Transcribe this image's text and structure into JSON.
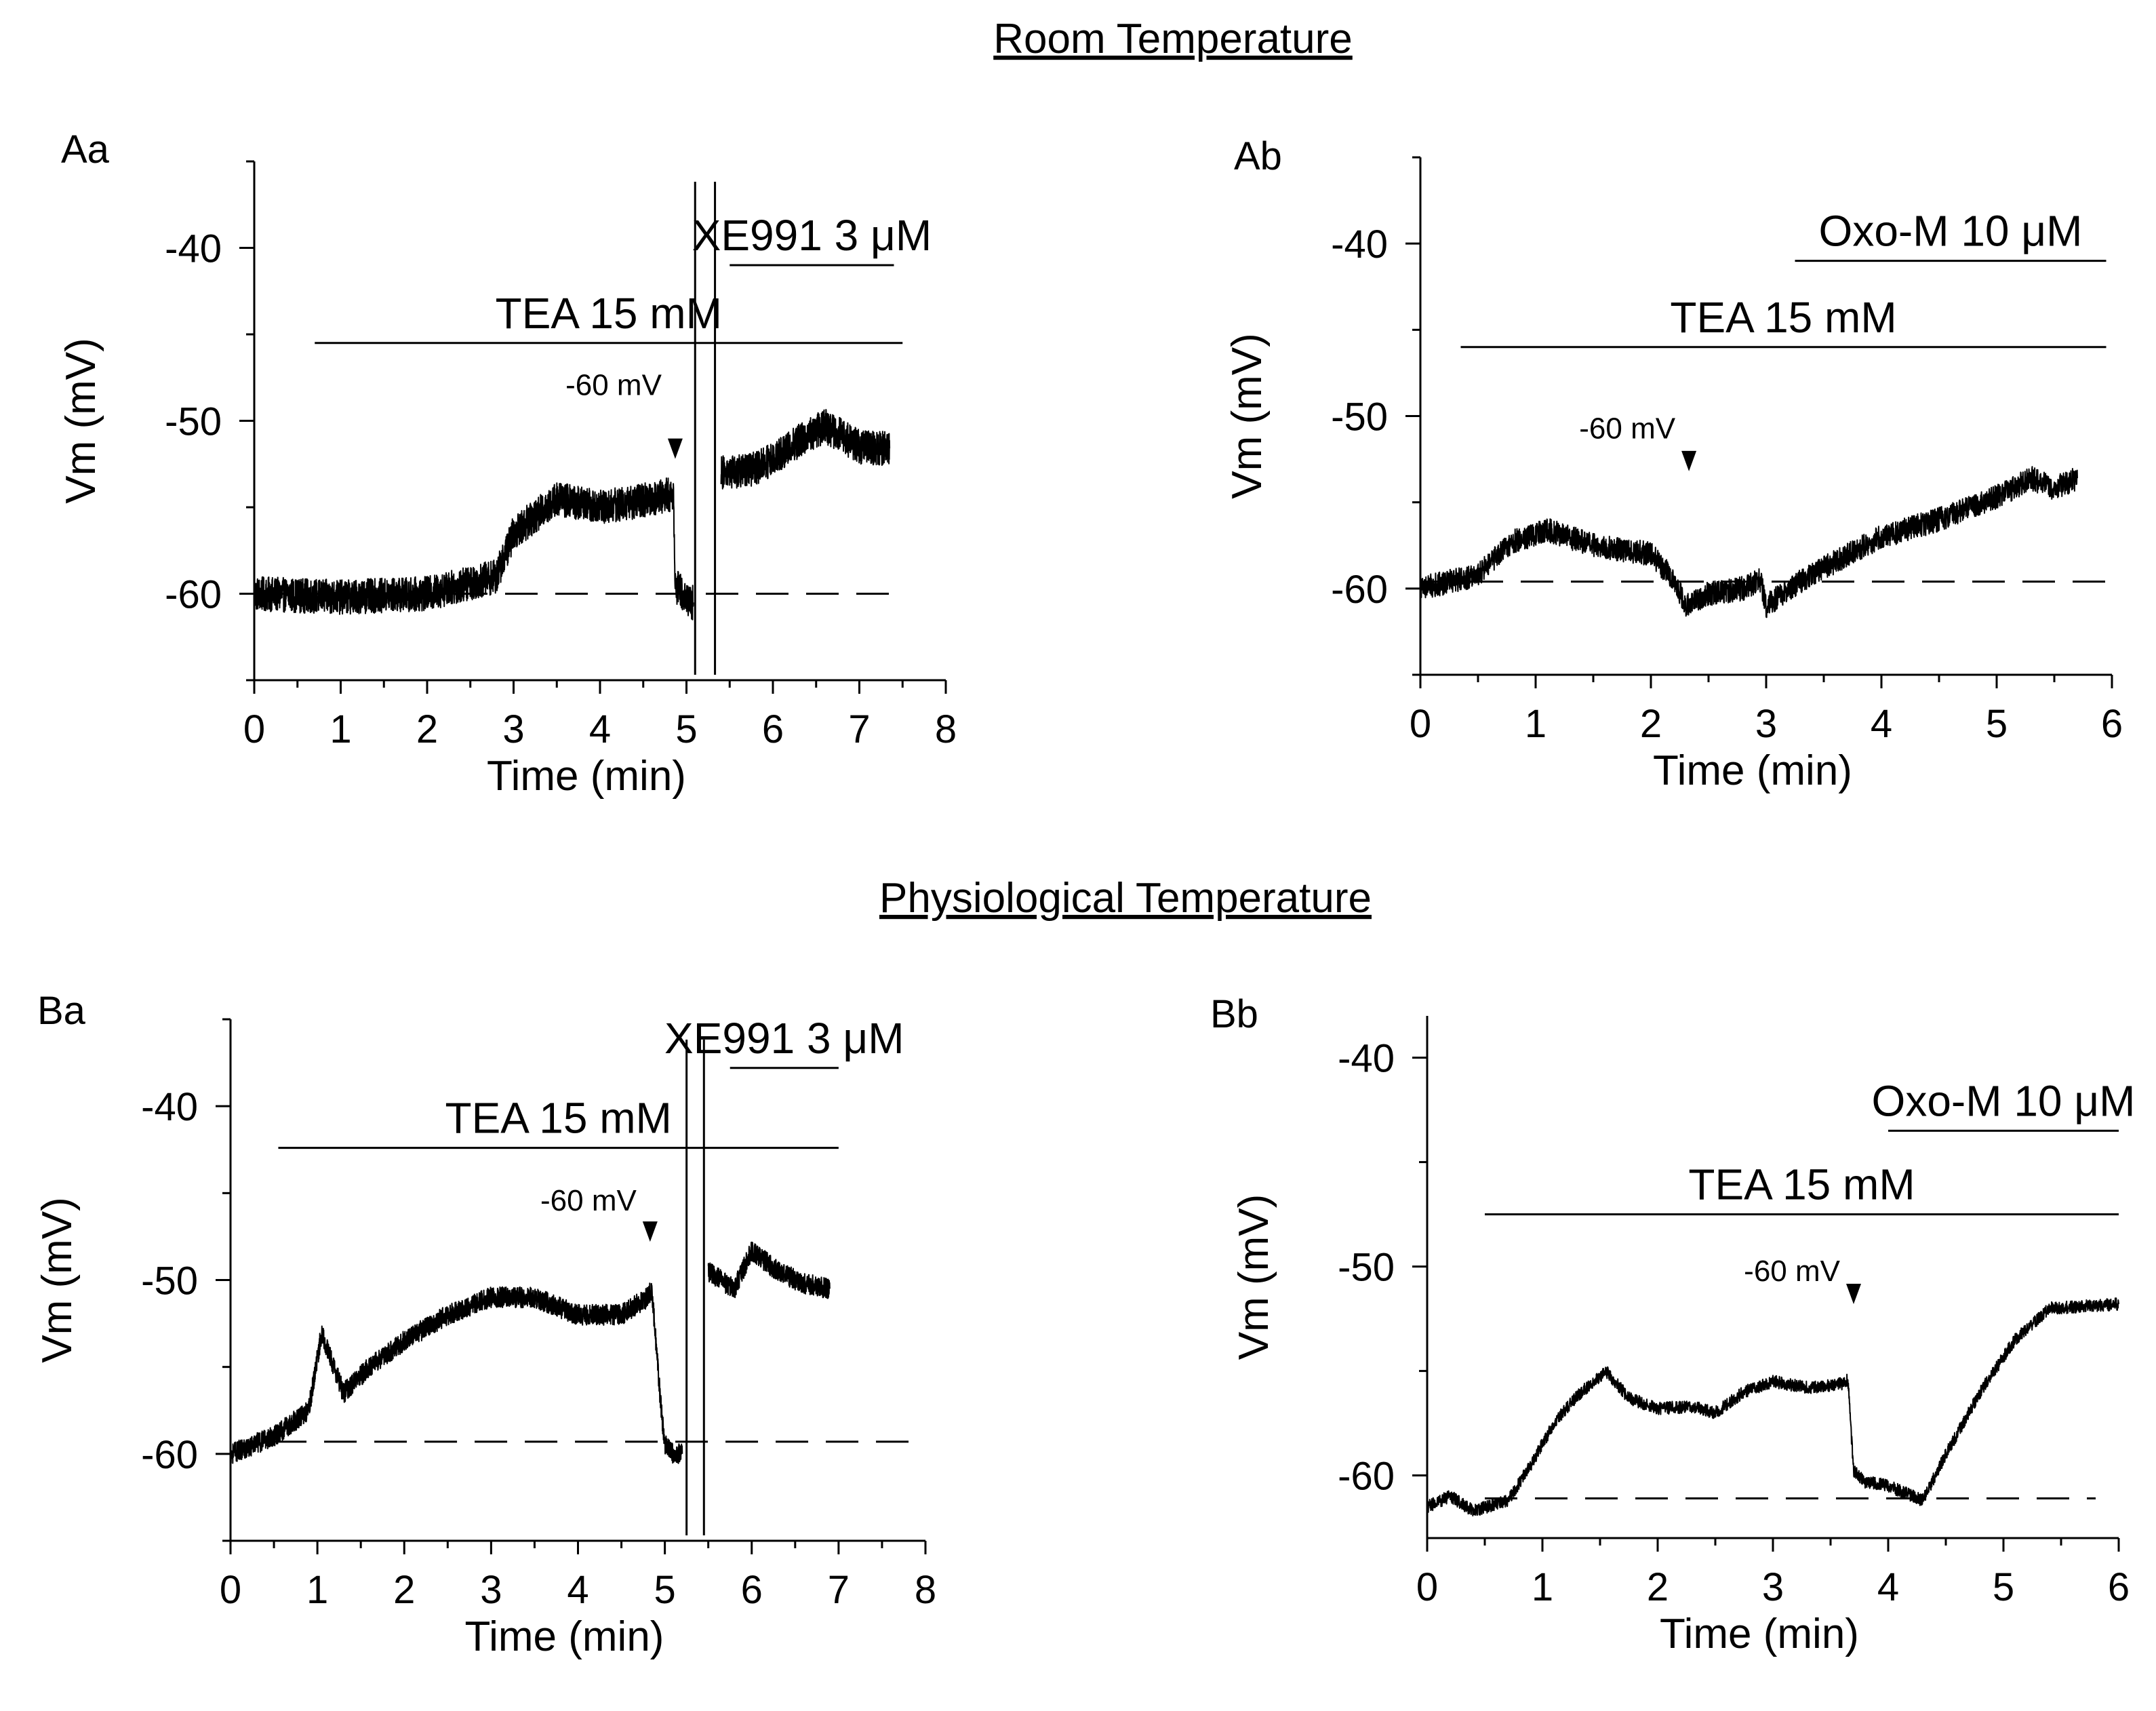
{
  "sections": {
    "room": "Room Temperature",
    "physio": "Physiological Temperature"
  },
  "chart_data": [
    {
      "id": "Aa",
      "type": "line",
      "panel_label": "Aa",
      "xlabel": "Time (min)",
      "ylabel": "Vm (mV)",
      "xlim": [
        0,
        8
      ],
      "ylim": [
        -65,
        -35
      ],
      "x_ticks": [
        0,
        1,
        2,
        3,
        4,
        5,
        6,
        7,
        8
      ],
      "y_ticks": [
        -60,
        -50,
        -40
      ],
      "trace_color": "#000000",
      "trace_noise_mV": 1.0,
      "trace": [
        [
          0,
          -60.0
        ],
        [
          1.0,
          -60.2
        ],
        [
          2.0,
          -60.0
        ],
        [
          2.8,
          -59.0
        ],
        [
          3.0,
          -56.5
        ],
        [
          3.5,
          -54.5
        ],
        [
          4.0,
          -55.0
        ],
        [
          4.5,
          -54.6
        ],
        [
          4.85,
          -54.2
        ],
        [
          4.87,
          -59.5
        ],
        [
          5.05,
          -60.5
        ],
        [
          5.08,
          -60.5
        ]
      ],
      "trace_after": [
        [
          5.4,
          -53.0
        ],
        [
          5.8,
          -52.8
        ],
        [
          6.2,
          -51.5
        ],
        [
          6.6,
          -50.3
        ],
        [
          7.0,
          -51.5
        ],
        [
          7.35,
          -51.6
        ]
      ],
      "breaks": [
        5.1,
        5.33
      ],
      "baseline": {
        "value": -60,
        "x_start": 0,
        "x_end": 7.35,
        "dashed": true
      },
      "bars": [
        {
          "label": "TEA 15 mM",
          "start": 0.7,
          "end": 7.5,
          "value": -45.5
        },
        {
          "label": "XE991 3 μM",
          "start": 5.5,
          "end": 7.4,
          "value": -41.0
        }
      ],
      "annotations": [
        {
          "text": "-60 mV",
          "x": 4.87,
          "marker_value": -52.2,
          "label_value": -48.5
        }
      ]
    },
    {
      "id": "Ab",
      "type": "line",
      "panel_label": "Ab",
      "xlabel": "Time (min)",
      "ylabel": "Vm (mV)",
      "xlim": [
        0,
        6
      ],
      "ylim": [
        -65,
        -35
      ],
      "x_ticks": [
        0,
        1,
        2,
        3,
        4,
        5,
        6
      ],
      "y_ticks": [
        -60,
        -50,
        -40
      ],
      "trace_color": "#000000",
      "trace_noise_mV": 0.7,
      "trace": [
        [
          0,
          -60.0
        ],
        [
          0.5,
          -59.2
        ],
        [
          0.8,
          -57.3
        ],
        [
          1.1,
          -56.6
        ],
        [
          1.5,
          -57.5
        ],
        [
          2.0,
          -58.0
        ],
        [
          2.2,
          -59.5
        ],
        [
          2.3,
          -61.0
        ],
        [
          2.5,
          -60.3
        ],
        [
          2.8,
          -60.0
        ],
        [
          2.95,
          -59.5
        ],
        [
          3.0,
          -61.0
        ],
        [
          3.2,
          -60.0
        ],
        [
          3.5,
          -58.8
        ],
        [
          4.0,
          -57.0
        ],
        [
          4.5,
          -56.0
        ],
        [
          5.0,
          -54.7
        ],
        [
          5.3,
          -53.6
        ],
        [
          5.5,
          -54.2
        ],
        [
          5.7,
          -53.6
        ]
      ],
      "breaks": [],
      "baseline": {
        "value": -59.6,
        "x_start": 0,
        "x_end": 6,
        "dashed": true
      },
      "bars": [
        {
          "label": "TEA 15 mM",
          "start": 0.35,
          "end": 5.95,
          "value": -46.0
        },
        {
          "label": "Oxo-M 10 μM",
          "start": 3.25,
          "end": 5.95,
          "value": -41.0
        }
      ],
      "annotations": [
        {
          "text": "-60 mV",
          "x": 2.33,
          "marker_value": -53.2,
          "label_value": -51.3
        }
      ]
    },
    {
      "id": "Ba",
      "type": "line",
      "panel_label": "Ba",
      "xlabel": "Time (min)",
      "ylabel": "Vm (mV)",
      "xlim": [
        0,
        8
      ],
      "ylim": [
        -65,
        -35
      ],
      "x_ticks": [
        0,
        1,
        2,
        3,
        4,
        5,
        6,
        7,
        8
      ],
      "y_ticks": [
        -60,
        -50,
        -40
      ],
      "trace_color": "#000000",
      "trace_noise_mV": 0.6,
      "trace": [
        [
          0,
          -60.0
        ],
        [
          0.5,
          -59.0
        ],
        [
          0.9,
          -57.5
        ],
        [
          1.05,
          -53.0
        ],
        [
          1.15,
          -54.5
        ],
        [
          1.3,
          -56.5
        ],
        [
          1.6,
          -55.0
        ],
        [
          2.0,
          -53.5
        ],
        [
          2.5,
          -52.0
        ],
        [
          3.0,
          -51.0
        ],
        [
          3.5,
          -51.0
        ],
        [
          4.0,
          -52.0
        ],
        [
          4.5,
          -52.0
        ],
        [
          4.8,
          -51.0
        ],
        [
          4.85,
          -50.5
        ],
        [
          4.95,
          -57.0
        ],
        [
          5.0,
          -59.5
        ],
        [
          5.1,
          -60.0
        ],
        [
          5.2,
          -60.0
        ]
      ],
      "trace_after": [
        [
          5.5,
          -49.5
        ],
        [
          5.8,
          -50.5
        ],
        [
          6.0,
          -48.3
        ],
        [
          6.3,
          -49.5
        ],
        [
          6.6,
          -50.2
        ],
        [
          6.9,
          -50.5
        ]
      ],
      "breaks": [
        5.25,
        5.45
      ],
      "baseline": {
        "value": -59.3,
        "x_start": 0.5,
        "x_end": 7.9,
        "dashed": true
      },
      "bars": [
        {
          "label": "TEA 15 mM",
          "start": 0.55,
          "end": 7.0,
          "value": -42.4
        },
        {
          "label": "XE991 3 μM",
          "start": 5.75,
          "end": 7.0,
          "value": -37.8
        }
      ],
      "annotations": [
        {
          "text": "-60 mV",
          "x": 4.83,
          "marker_value": -47.8,
          "label_value": -46.0
        }
      ]
    },
    {
      "id": "Bb",
      "type": "line",
      "panel_label": "Bb",
      "xlabel": "Time (min)",
      "ylabel": "Vm (mV)",
      "xlim": [
        0,
        6
      ],
      "ylim": [
        -63,
        -38
      ],
      "x_ticks": [
        0,
        1,
        2,
        3,
        4,
        5,
        6
      ],
      "y_ticks": [
        -60,
        -50,
        -40
      ],
      "trace_color": "#000000",
      "trace_noise_mV": 0.3,
      "trace": [
        [
          0,
          -61.5
        ],
        [
          0.2,
          -61.0
        ],
        [
          0.4,
          -61.7
        ],
        [
          0.7,
          -61.2
        ],
        [
          0.9,
          -59.5
        ],
        [
          1.1,
          -57.5
        ],
        [
          1.3,
          -56.2
        ],
        [
          1.55,
          -55.0
        ],
        [
          1.75,
          -56.3
        ],
        [
          2.0,
          -56.8
        ],
        [
          2.3,
          -56.7
        ],
        [
          2.5,
          -57.0
        ],
        [
          2.75,
          -56.0
        ],
        [
          3.0,
          -55.5
        ],
        [
          3.3,
          -55.8
        ],
        [
          3.6,
          -55.6
        ],
        [
          3.65,
          -55.4
        ],
        [
          3.7,
          -59.8
        ],
        [
          3.8,
          -60.3
        ],
        [
          4.0,
          -60.5
        ],
        [
          4.3,
          -61.2
        ],
        [
          4.5,
          -59.0
        ],
        [
          4.8,
          -56.0
        ],
        [
          5.1,
          -53.5
        ],
        [
          5.4,
          -52.0
        ],
        [
          5.7,
          -51.9
        ],
        [
          6.0,
          -51.8
        ]
      ],
      "breaks": [],
      "baseline": {
        "value": -61.1,
        "x_start": 0.5,
        "x_end": 5.8,
        "dashed": true
      },
      "bars": [
        {
          "label": "TEA 15 mM",
          "start": 0.5,
          "end": 6.0,
          "value": -47.5
        },
        {
          "label": "Oxo-M 10 μM",
          "start": 4.0,
          "end": 6.0,
          "value": -43.5
        }
      ],
      "annotations": [
        {
          "text": "-60 mV",
          "x": 3.7,
          "marker_value": -51.8,
          "label_value": -50.7
        }
      ]
    }
  ]
}
